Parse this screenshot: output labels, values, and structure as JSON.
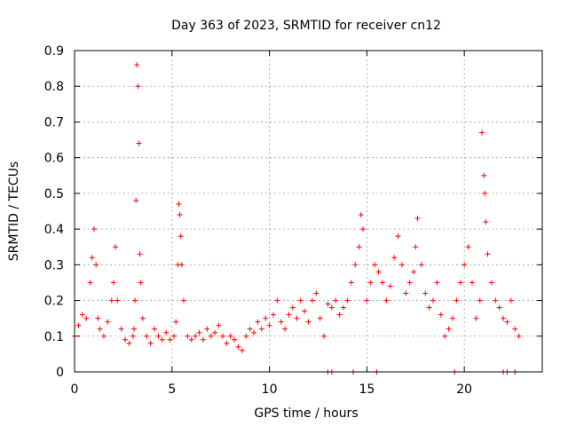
{
  "chart_data": {
    "type": "scatter",
    "title": "Day 363 of 2023, SRMTID for receiver cn12",
    "xlabel": "GPS time / hours",
    "ylabel": "SRMTID / TECUs",
    "xlim": [
      0,
      24
    ],
    "ylim": [
      0,
      0.9
    ],
    "xticks": [
      0,
      5,
      10,
      15,
      20
    ],
    "yticks": [
      0,
      0.1,
      0.2,
      0.3,
      0.4,
      0.5,
      0.6,
      0.7,
      0.8,
      0.9
    ],
    "xtick_labels": [
      "0",
      "5",
      "10",
      "15",
      "20"
    ],
    "ytick_labels": [
      "0",
      "0.1",
      "0.2",
      "0.3",
      "0.4",
      "0.5",
      "0.6",
      "0.7",
      "0.8",
      "0.9"
    ],
    "grid": true,
    "marker": "+",
    "color": "#ff0000",
    "series": [
      {
        "name": "SRMTID",
        "x": [
          0.0,
          0.2,
          0.4,
          0.6,
          0.8,
          0.9,
          1.0,
          1.1,
          1.2,
          1.3,
          1.5,
          1.7,
          1.9,
          2.0,
          2.1,
          2.2,
          2.4,
          2.6,
          2.8,
          3.0,
          3.05,
          3.1,
          3.15,
          3.2,
          3.25,
          3.3,
          3.35,
          3.4,
          3.5,
          3.7,
          3.9,
          4.1,
          4.3,
          4.5,
          4.7,
          4.9,
          5.1,
          5.2,
          5.3,
          5.35,
          5.4,
          5.45,
          5.5,
          5.6,
          5.8,
          6.0,
          6.2,
          6.4,
          6.6,
          6.8,
          7.0,
          7.2,
          7.4,
          7.6,
          7.8,
          8.0,
          8.2,
          8.4,
          8.6,
          8.8,
          9.0,
          9.2,
          9.4,
          9.6,
          9.8,
          10.0,
          10.2,
          10.4,
          10.6,
          10.8,
          11.0,
          11.2,
          11.4,
          11.6,
          11.8,
          12.0,
          12.2,
          12.4,
          12.6,
          12.8,
          13.0,
          13.2,
          13.4,
          13.6,
          13.8,
          14.0,
          14.2,
          14.4,
          14.6,
          14.7,
          14.8,
          15.0,
          15.2,
          15.4,
          15.6,
          15.8,
          16.0,
          16.2,
          16.4,
          16.6,
          16.8,
          17.0,
          17.2,
          17.4,
          17.5,
          17.6,
          17.8,
          18.0,
          18.2,
          18.4,
          18.6,
          18.8,
          19.0,
          19.2,
          19.4,
          19.6,
          19.8,
          20.0,
          20.2,
          20.4,
          20.6,
          20.8,
          20.9,
          21.0,
          21.05,
          21.1,
          21.2,
          21.4,
          21.6,
          21.8,
          22.0,
          22.2,
          22.4,
          22.6,
          22.8,
          13.0,
          13.2,
          14.3,
          15.5,
          19.5,
          22.0,
          22.2,
          22.6
        ],
        "y": [
          0.1,
          0.13,
          0.16,
          0.15,
          0.25,
          0.32,
          0.4,
          0.3,
          0.15,
          0.12,
          0.1,
          0.14,
          0.2,
          0.25,
          0.35,
          0.2,
          0.12,
          0.09,
          0.08,
          0.1,
          0.12,
          0.2,
          0.48,
          0.86,
          0.8,
          0.64,
          0.33,
          0.25,
          0.15,
          0.1,
          0.08,
          0.12,
          0.1,
          0.09,
          0.11,
          0.09,
          0.1,
          0.14,
          0.3,
          0.47,
          0.44,
          0.38,
          0.3,
          0.2,
          0.1,
          0.09,
          0.1,
          0.11,
          0.09,
          0.12,
          0.1,
          0.11,
          0.13,
          0.1,
          0.08,
          0.1,
          0.09,
          0.07,
          0.06,
          0.1,
          0.12,
          0.11,
          0.14,
          0.12,
          0.15,
          0.13,
          0.16,
          0.2,
          0.14,
          0.12,
          0.16,
          0.18,
          0.15,
          0.2,
          0.17,
          0.14,
          0.2,
          0.22,
          0.15,
          0.1,
          0.19,
          0.18,
          0.2,
          0.16,
          0.18,
          0.2,
          0.25,
          0.3,
          0.35,
          0.44,
          0.4,
          0.2,
          0.25,
          0.3,
          0.28,
          0.25,
          0.2,
          0.24,
          0.32,
          0.38,
          0.3,
          0.22,
          0.25,
          0.28,
          0.35,
          0.43,
          0.3,
          0.22,
          0.18,
          0.2,
          0.25,
          0.16,
          0.1,
          0.12,
          0.15,
          0.2,
          0.25,
          0.3,
          0.35,
          0.25,
          0.15,
          0.2,
          0.67,
          0.55,
          0.5,
          0.42,
          0.33,
          0.25,
          0.2,
          0.18,
          0.15,
          0.14,
          0.2,
          0.12,
          0.1,
          0.0,
          0.0,
          0.0,
          0.0,
          0.0,
          0.0,
          0.0,
          0.0
        ]
      }
    ]
  }
}
